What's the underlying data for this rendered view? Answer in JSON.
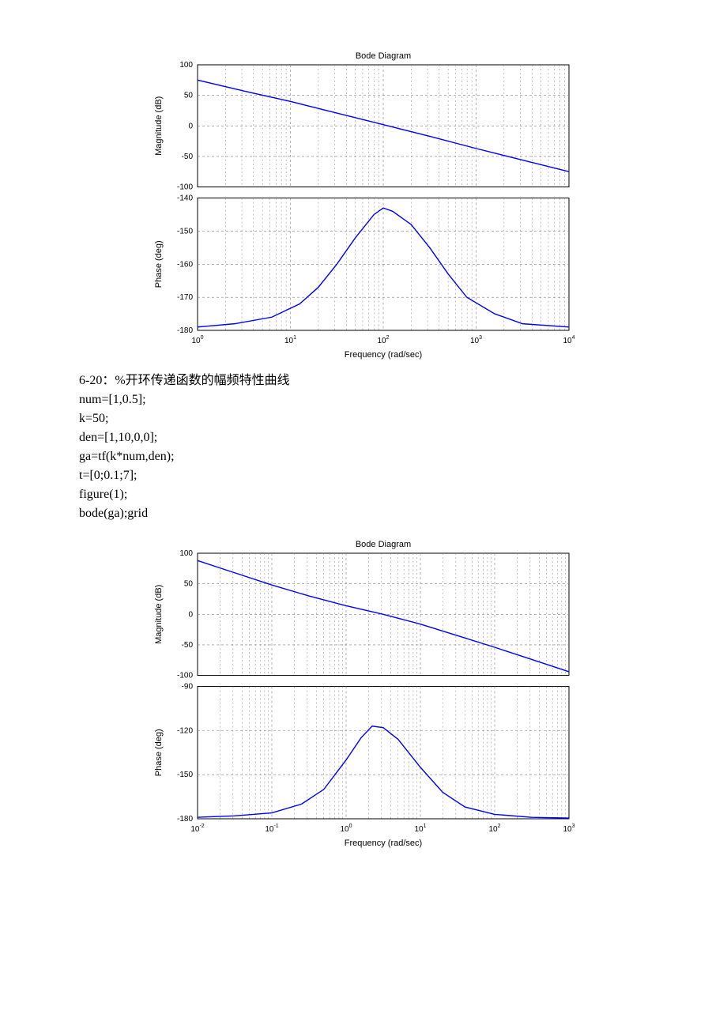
{
  "chart1": {
    "type": "bode",
    "title": "Bode Diagram",
    "title_fontsize": 11,
    "xlabel": "Frequency  (rad/sec)",
    "label_fontsize": 11,
    "background_color": "#ffffff",
    "grid_color": "#808080",
    "axis_color": "#000000",
    "line_color": "#0000ff",
    "line_width": 1.4,
    "x_log_min": 0,
    "x_log_max": 4,
    "magnitude": {
      "ylabel": "Magnitude (dB)",
      "ylim": [
        -100,
        100
      ],
      "ytick_step": 50,
      "data": [
        {
          "logx": 0.0,
          "y": 75
        },
        {
          "logx": 0.5,
          "y": 57
        },
        {
          "logx": 1.0,
          "y": 40
        },
        {
          "logx": 1.5,
          "y": 21
        },
        {
          "logx": 2.0,
          "y": 2
        },
        {
          "logx": 2.5,
          "y": -17
        },
        {
          "logx": 3.0,
          "y": -37
        },
        {
          "logx": 3.5,
          "y": -56
        },
        {
          "logx": 4.0,
          "y": -75
        }
      ]
    },
    "phase": {
      "ylabel": "Phase (deg)",
      "ylim": [
        -180,
        -140
      ],
      "ytick_step": 10,
      "data": [
        {
          "logx": 0.0,
          "y": -179
        },
        {
          "logx": 0.4,
          "y": -178
        },
        {
          "logx": 0.8,
          "y": -176
        },
        {
          "logx": 1.1,
          "y": -172
        },
        {
          "logx": 1.3,
          "y": -167
        },
        {
          "logx": 1.5,
          "y": -160
        },
        {
          "logx": 1.7,
          "y": -152
        },
        {
          "logx": 1.9,
          "y": -145
        },
        {
          "logx": 2.0,
          "y": -143
        },
        {
          "logx": 2.1,
          "y": -144
        },
        {
          "logx": 2.3,
          "y": -148
        },
        {
          "logx": 2.5,
          "y": -155
        },
        {
          "logx": 2.7,
          "y": -163
        },
        {
          "logx": 2.9,
          "y": -170
        },
        {
          "logx": 3.2,
          "y": -175
        },
        {
          "logx": 3.5,
          "y": -178
        },
        {
          "logx": 4.0,
          "y": -179
        }
      ]
    }
  },
  "code1": {
    "lines": [
      "6-20：%开环传递函数的幅频特性曲线",
      "num=[1,0.5];",
      "k=50;",
      "den=[1,10,0,0];",
      "ga=tf(k*num,den);",
      "t=[0;0.1;7];",
      "figure(1);",
      "bode(ga);grid"
    ]
  },
  "chart2": {
    "type": "bode",
    "title": "Bode Diagram",
    "title_fontsize": 11,
    "xlabel": "Frequency  (rad/sec)",
    "label_fontsize": 11,
    "background_color": "#ffffff",
    "grid_color": "#808080",
    "axis_color": "#000000",
    "line_color": "#0000ff",
    "line_width": 1.4,
    "x_log_min": -2,
    "x_log_max": 3,
    "magnitude": {
      "ylabel": "Magnitude (dB)",
      "ylim": [
        -100,
        100
      ],
      "ytick_step": 50,
      "data": [
        {
          "logx": -2.0,
          "y": 88
        },
        {
          "logx": -1.5,
          "y": 68
        },
        {
          "logx": -1.0,
          "y": 48
        },
        {
          "logx": -0.5,
          "y": 30
        },
        {
          "logx": 0.0,
          "y": 14
        },
        {
          "logx": 0.5,
          "y": 0
        },
        {
          "logx": 1.0,
          "y": -16
        },
        {
          "logx": 1.5,
          "y": -35
        },
        {
          "logx": 2.0,
          "y": -54
        },
        {
          "logx": 2.5,
          "y": -74
        },
        {
          "logx": 3.0,
          "y": -94
        }
      ]
    },
    "phase": {
      "ylabel": "Phase (deg)",
      "ylim": [
        -180,
        -90
      ],
      "ytick_step": 30,
      "data": [
        {
          "logx": -2.0,
          "y": -179
        },
        {
          "logx": -1.5,
          "y": -178
        },
        {
          "logx": -1.0,
          "y": -176
        },
        {
          "logx": -0.6,
          "y": -170
        },
        {
          "logx": -0.3,
          "y": -160
        },
        {
          "logx": 0.0,
          "y": -140
        },
        {
          "logx": 0.2,
          "y": -125
        },
        {
          "logx": 0.35,
          "y": -117
        },
        {
          "logx": 0.5,
          "y": -118
        },
        {
          "logx": 0.7,
          "y": -126
        },
        {
          "logx": 1.0,
          "y": -145
        },
        {
          "logx": 1.3,
          "y": -162
        },
        {
          "logx": 1.6,
          "y": -172
        },
        {
          "logx": 2.0,
          "y": -177
        },
        {
          "logx": 2.5,
          "y": -179
        },
        {
          "logx": 3.0,
          "y": -179.5
        }
      ]
    }
  }
}
